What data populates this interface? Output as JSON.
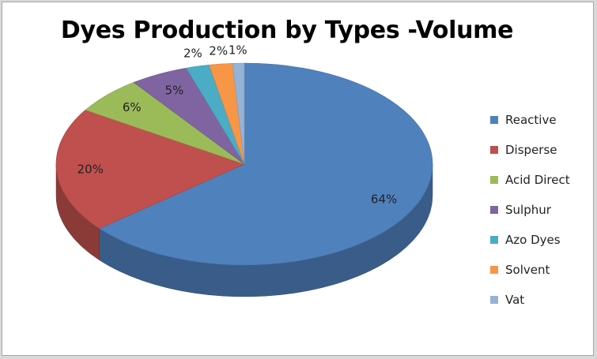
{
  "chart_data": {
    "type": "pie",
    "title": "Dyes Production by Types -Volume",
    "style": "3d",
    "legend_position": "right",
    "categories": [
      "Reactive",
      "Disperse",
      "Acid Direct",
      "Sulphur",
      "Azo Dyes",
      "Solvent",
      "Vat"
    ],
    "values": [
      64,
      20,
      6,
      5,
      2,
      2,
      1
    ],
    "labels": [
      "64%",
      "20%",
      "6%",
      "5%",
      "2%",
      "2%",
      "1%"
    ],
    "colors": [
      "#4f81bd",
      "#c0504d",
      "#9bbb59",
      "#8064a2",
      "#4bacc6",
      "#f79646",
      "#95b3d7"
    ]
  }
}
